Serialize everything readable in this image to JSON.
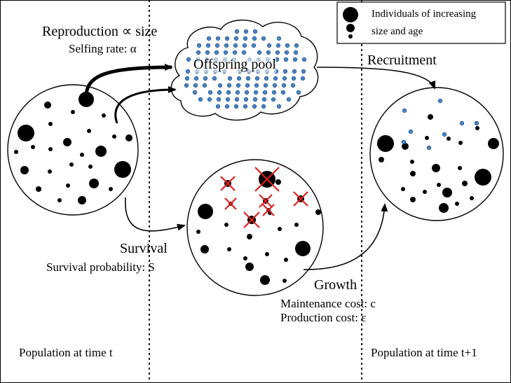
{
  "legend": {
    "line1": "Individuals of increasing",
    "line2": "size and age"
  },
  "labels": {
    "reproduction": "Reproduction ∝ size",
    "selfing": "Selfing rate: α",
    "offspring_pool": "Offspring pool",
    "recruitment": "Recruitment",
    "survival": "Survival",
    "survival_prob": "Survival probability: S",
    "growth": "Growth",
    "maintenance": "Maintenance cost: c",
    "production": "Production cost: ε",
    "pop_t": "Population at time t",
    "pop_t1": "Population at time t+1"
  },
  "colors": {
    "individual": "#000000",
    "offspring": "#4a86c8",
    "dead_mark": "#e02020",
    "line": "#000000"
  }
}
